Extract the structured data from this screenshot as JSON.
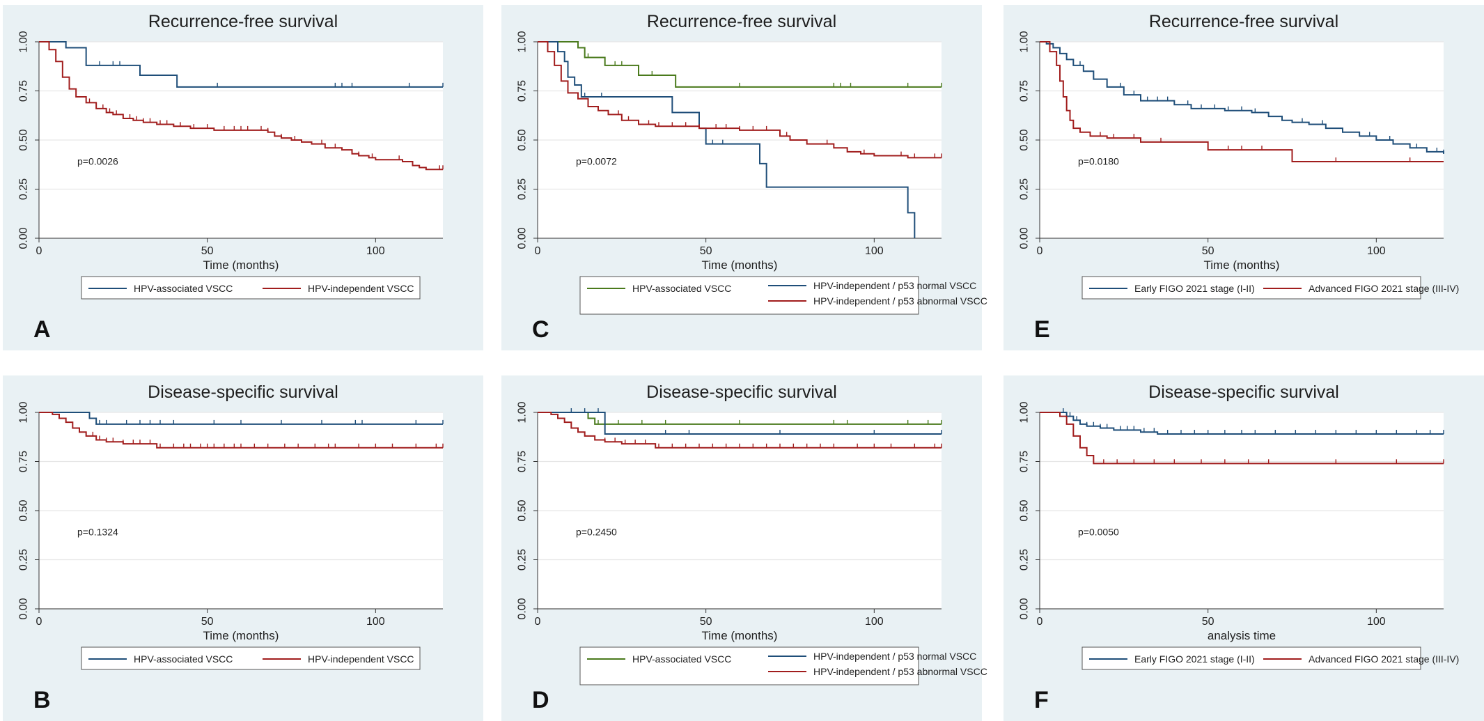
{
  "figure": {
    "panel_bg": "#e9f1f4",
    "plot_bg": "#ffffff",
    "grid_color": "#e6e6e6"
  },
  "chart_data": [
    {
      "letter": "A",
      "type": "line",
      "title": "Recurrence-free survival",
      "xlabel": "Time (months)",
      "ylabel": "",
      "xlim": [
        0,
        120
      ],
      "ylim": [
        0,
        1
      ],
      "xticks": [
        "0",
        "50",
        "100"
      ],
      "yticks": [
        "0.00",
        "0.25",
        "0.50",
        "0.75",
        "1.00"
      ],
      "grid": true,
      "pvalue": "p=0.0026",
      "legend_position": "bottom",
      "series": [
        {
          "name": "HPV-associated VSCC",
          "color": "#1f4e79",
          "x": [
            0,
            7,
            8,
            12,
            14,
            30,
            41,
            120
          ],
          "y": [
            1.0,
            1.0,
            0.97,
            0.97,
            0.88,
            0.83,
            0.77,
            0.77
          ],
          "censor": [
            8,
            14,
            18,
            22,
            24,
            53,
            88,
            90,
            93,
            110,
            120
          ]
        },
        {
          "name": "HPV-independent VSCC",
          "color": "#a11d1d",
          "x": [
            0,
            3,
            5,
            7,
            9,
            11,
            14,
            17,
            20,
            22,
            25,
            28,
            31,
            35,
            40,
            45,
            52,
            60,
            68,
            70,
            72,
            75,
            78,
            81,
            85,
            90,
            93,
            95,
            98,
            100,
            108,
            111,
            113,
            115,
            120
          ],
          "y": [
            1.0,
            0.96,
            0.9,
            0.82,
            0.76,
            0.72,
            0.69,
            0.66,
            0.64,
            0.63,
            0.61,
            0.6,
            0.59,
            0.58,
            0.57,
            0.56,
            0.55,
            0.55,
            0.54,
            0.52,
            0.51,
            0.5,
            0.49,
            0.48,
            0.46,
            0.45,
            0.43,
            0.42,
            0.41,
            0.4,
            0.39,
            0.37,
            0.36,
            0.35,
            0.35
          ],
          "censor": [
            15,
            17,
            19,
            21,
            23,
            25,
            27,
            29,
            31,
            33,
            36,
            38,
            42,
            46,
            50,
            55,
            58,
            60,
            62,
            66,
            68,
            72,
            76,
            84,
            88,
            95,
            99,
            107,
            119,
            120
          ]
        }
      ]
    },
    {
      "letter": "B",
      "type": "line",
      "title": "Disease-specific survival",
      "xlabel": "Time (months)",
      "ylabel": "",
      "xlim": [
        0,
        120
      ],
      "ylim": [
        0,
        1
      ],
      "xticks": [
        "0",
        "50",
        "100"
      ],
      "yticks": [
        "0.00",
        "0.25",
        "0.50",
        "0.75",
        "1.00"
      ],
      "grid": true,
      "pvalue": "p=0.1324",
      "legend_position": "bottom",
      "series": [
        {
          "name": "HPV-associated VSCC",
          "color": "#1f4e79",
          "x": [
            0,
            13,
            15,
            17,
            120
          ],
          "y": [
            1.0,
            1.0,
            0.97,
            0.94,
            0.94
          ],
          "censor": [
            15,
            17,
            18,
            20,
            26,
            30,
            33,
            36,
            40,
            52,
            60,
            72,
            84,
            94,
            96,
            112,
            120
          ]
        },
        {
          "name": "HPV-independent VSCC",
          "color": "#a11d1d",
          "x": [
            0,
            4,
            6,
            8,
            10,
            12,
            14,
            17,
            20,
            25,
            30,
            35,
            120
          ],
          "y": [
            1.0,
            0.99,
            0.97,
            0.95,
            0.92,
            0.9,
            0.88,
            0.86,
            0.85,
            0.84,
            0.84,
            0.82,
            0.82
          ],
          "censor": [
            14,
            16,
            18,
            20,
            22,
            25,
            28,
            30,
            33,
            36,
            40,
            43,
            45,
            48,
            50,
            52,
            55,
            58,
            60,
            64,
            68,
            73,
            77,
            82,
            86,
            88,
            95,
            100,
            105,
            112,
            118,
            120
          ]
        }
      ]
    },
    {
      "letter": "C",
      "type": "line",
      "title": "Recurrence-free survival",
      "xlabel": "Time (months)",
      "ylabel": "",
      "xlim": [
        0,
        120
      ],
      "ylim": [
        0,
        1
      ],
      "xticks": [
        "0",
        "50",
        "100"
      ],
      "yticks": [
        "0.00",
        "0.25",
        "0.50",
        "0.75",
        "1.00"
      ],
      "grid": true,
      "pvalue": "p=0.0072",
      "legend_position": "bottom",
      "series": [
        {
          "name": "HPV-associated VSCC",
          "color": "#4a7a1c",
          "x": [
            0,
            10,
            12,
            14,
            20,
            30,
            41,
            120
          ],
          "y": [
            1.0,
            1.0,
            0.97,
            0.92,
            0.88,
            0.83,
            0.77,
            0.77
          ],
          "censor": [
            12,
            15,
            20,
            23,
            25,
            30,
            34,
            60,
            88,
            90,
            93,
            110,
            120
          ]
        },
        {
          "name": "HPV-independent / p53 normal VSCC",
          "color": "#1f4e79",
          "x": [
            0,
            6,
            8,
            9,
            11,
            13,
            40,
            42,
            48,
            50,
            62,
            66,
            68,
            110,
            111,
            112
          ],
          "y": [
            1.0,
            0.95,
            0.9,
            0.82,
            0.78,
            0.72,
            0.64,
            0.64,
            0.56,
            0.48,
            0.48,
            0.38,
            0.26,
            0.13,
            0.13,
            0.0
          ],
          "censor": [
            11,
            14,
            19,
            52,
            55,
            66
          ]
        },
        {
          "name": "HPV-independent / p53 abnormal VSCC",
          "color": "#a11d1d",
          "x": [
            0,
            3,
            5,
            7,
            9,
            12,
            15,
            18,
            21,
            25,
            30,
            35,
            48,
            60,
            72,
            75,
            80,
            88,
            92,
            96,
            100,
            110,
            118,
            120
          ],
          "y": [
            1.0,
            0.95,
            0.88,
            0.8,
            0.74,
            0.71,
            0.67,
            0.65,
            0.63,
            0.6,
            0.58,
            0.57,
            0.56,
            0.55,
            0.52,
            0.5,
            0.48,
            0.46,
            0.44,
            0.43,
            0.42,
            0.41,
            0.41,
            0.41
          ],
          "censor": [
            15,
            18,
            21,
            24,
            27,
            30,
            33,
            36,
            40,
            44,
            48,
            53,
            56,
            60,
            64,
            68,
            74,
            86,
            92,
            97,
            108,
            112,
            118,
            120
          ]
        }
      ]
    },
    {
      "letter": "D",
      "type": "line",
      "title": "Disease-specific survival",
      "xlabel": "Time (months)",
      "ylabel": "",
      "xlim": [
        0,
        120
      ],
      "ylim": [
        0,
        1
      ],
      "xticks": [
        "0",
        "50",
        "100"
      ],
      "yticks": [
        "0.00",
        "0.25",
        "0.50",
        "0.75",
        "1.00"
      ],
      "grid": true,
      "pvalue": "p=0.2450",
      "legend_position": "bottom",
      "series": [
        {
          "name": "HPV-associated VSCC",
          "color": "#4a7a1c",
          "x": [
            0,
            13,
            15,
            17,
            120
          ],
          "y": [
            1.0,
            1.0,
            0.97,
            0.94,
            0.94
          ],
          "censor": [
            15,
            18,
            20,
            24,
            31,
            38,
            60,
            88,
            92,
            110,
            116,
            120
          ]
        },
        {
          "name": "HPV-independent / p53 normal VSCC",
          "color": "#1f4e79",
          "x": [
            0,
            18,
            20,
            120
          ],
          "y": [
            1.0,
            1.0,
            0.89,
            0.89
          ],
          "censor": [
            10,
            14,
            18,
            38,
            45,
            72,
            100,
            120
          ]
        },
        {
          "name": "HPV-independent / p53 abnormal VSCC",
          "color": "#a11d1d",
          "x": [
            0,
            4,
            6,
            8,
            10,
            12,
            14,
            17,
            20,
            25,
            30,
            35,
            120
          ],
          "y": [
            1.0,
            0.99,
            0.97,
            0.95,
            0.92,
            0.9,
            0.88,
            0.86,
            0.85,
            0.84,
            0.84,
            0.82,
            0.82
          ],
          "censor": [
            14,
            17,
            20,
            23,
            26,
            29,
            32,
            36,
            40,
            44,
            48,
            52,
            56,
            60,
            64,
            68,
            72,
            76,
            80,
            84,
            88,
            95,
            100,
            105,
            112,
            118,
            120
          ]
        }
      ]
    },
    {
      "letter": "E",
      "type": "line",
      "title": "Recurrence-free survival",
      "xlabel": "Time (months)",
      "ylabel": "",
      "xlim": [
        0,
        120
      ],
      "ylim": [
        0,
        1
      ],
      "xticks": [
        "0",
        "50",
        "100"
      ],
      "yticks": [
        "0.00",
        "0.25",
        "0.50",
        "0.75",
        "1.00"
      ],
      "grid": true,
      "pvalue": "p=0.0180",
      "legend_position": "bottom",
      "series": [
        {
          "name": "Early FIGO 2021 stage (I-II)",
          "color": "#1f4e79",
          "x": [
            0,
            2,
            4,
            6,
            8,
            10,
            13,
            16,
            20,
            25,
            30,
            40,
            45,
            55,
            63,
            68,
            72,
            75,
            80,
            85,
            90,
            95,
            100,
            105,
            110,
            115,
            120
          ],
          "y": [
            1.0,
            0.99,
            0.97,
            0.94,
            0.91,
            0.88,
            0.85,
            0.81,
            0.77,
            0.73,
            0.7,
            0.68,
            0.66,
            0.65,
            0.64,
            0.62,
            0.6,
            0.59,
            0.58,
            0.56,
            0.54,
            0.52,
            0.5,
            0.48,
            0.46,
            0.44,
            0.43
          ],
          "censor": [
            8,
            12,
            16,
            20,
            24,
            28,
            32,
            35,
            38,
            40,
            44,
            48,
            52,
            56,
            60,
            64,
            68,
            72,
            78,
            84,
            90,
            98,
            104,
            112,
            118,
            120
          ]
        },
        {
          "name": "Advanced FIGO 2021 stage (III-IV)",
          "color": "#a11d1d",
          "x": [
            0,
            3,
            5,
            6,
            7,
            8,
            9,
            10,
            12,
            15,
            20,
            30,
            40,
            50,
            62,
            75,
            120
          ],
          "y": [
            1.0,
            0.95,
            0.88,
            0.8,
            0.72,
            0.65,
            0.6,
            0.56,
            0.54,
            0.52,
            0.51,
            0.49,
            0.49,
            0.45,
            0.45,
            0.39,
            0.39
          ],
          "censor": [
            15,
            18,
            22,
            28,
            36,
            56,
            60,
            66,
            88,
            110
          ]
        }
      ]
    },
    {
      "letter": "F",
      "type": "line",
      "title": "Disease-specific survival",
      "xlabel": "analysis time",
      "ylabel": "",
      "xlim": [
        0,
        120
      ],
      "ylim": [
        0,
        1
      ],
      "xticks": [
        "0",
        "50",
        "100"
      ],
      "yticks": [
        "0.00",
        "0.25",
        "0.50",
        "0.75",
        "1.00"
      ],
      "grid": true,
      "pvalue": "p=0.0050",
      "legend_position": "bottom",
      "series": [
        {
          "name": "Early FIGO 2021 stage (I-II)",
          "color": "#1f4e79",
          "x": [
            0,
            6,
            8,
            10,
            12,
            14,
            18,
            22,
            30,
            35,
            120
          ],
          "y": [
            1.0,
            1.0,
            0.98,
            0.96,
            0.94,
            0.93,
            0.92,
            0.91,
            0.9,
            0.89,
            0.89
          ],
          "censor": [
            7,
            9,
            11,
            14,
            16,
            18,
            20,
            24,
            26,
            28,
            31,
            34,
            38,
            42,
            46,
            50,
            55,
            60,
            64,
            70,
            76,
            82,
            88,
            94,
            100,
            106,
            112,
            116,
            120
          ]
        },
        {
          "name": "Advanced FIGO 2021 stage (III-IV)",
          "color": "#a11d1d",
          "x": [
            0,
            6,
            8,
            10,
            12,
            14,
            16,
            120
          ],
          "y": [
            1.0,
            0.98,
            0.94,
            0.88,
            0.82,
            0.78,
            0.74,
            0.74
          ],
          "censor": [
            16,
            19,
            23,
            28,
            34,
            40,
            48,
            55,
            62,
            68,
            88,
            106,
            120
          ]
        }
      ]
    }
  ]
}
